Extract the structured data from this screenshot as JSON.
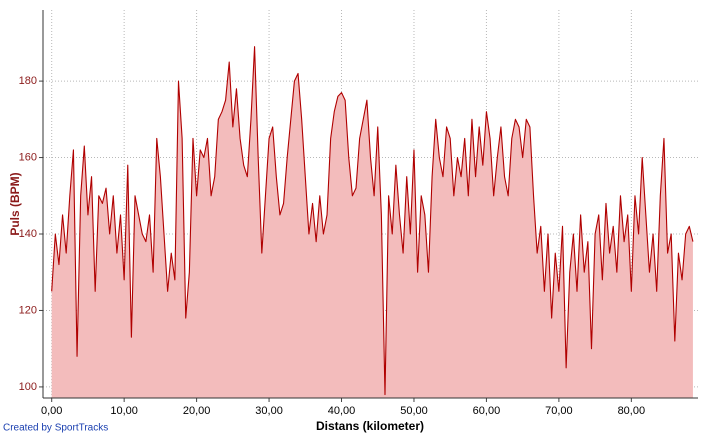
{
  "chart_data": {
    "type": "area",
    "x_label": "Distans (kilometer)",
    "y_label": "Puls (BPM)",
    "footer": "Created by SportTracks",
    "color": "#b00000",
    "fill_color": "#f3bcbc",
    "grid": true,
    "xlim": [
      -1.2,
      89.2
    ],
    "ylim": [
      97.1,
      198.6
    ],
    "xticks": [
      {
        "value": 0,
        "label": "0,00"
      },
      {
        "value": 10,
        "label": "10,00"
      },
      {
        "value": 20,
        "label": "20,00"
      },
      {
        "value": 30,
        "label": "30,00"
      },
      {
        "value": 40,
        "label": "40,00"
      },
      {
        "value": 50,
        "label": "50,00"
      },
      {
        "value": 60,
        "label": "60,00"
      },
      {
        "value": 70,
        "label": "70,00"
      },
      {
        "value": 80,
        "label": "80,00"
      }
    ],
    "yticks": [
      100,
      120,
      140,
      160,
      180
    ],
    "x": [
      0,
      0.5,
      1,
      1.5,
      2,
      2.5,
      3,
      3.5,
      4,
      4.5,
      5,
      5.5,
      6,
      6.5,
      7,
      7.5,
      8,
      8.5,
      9,
      9.5,
      10,
      10.5,
      11,
      11.5,
      12,
      12.5,
      13,
      13.5,
      14,
      14.5,
      15,
      15.5,
      16,
      16.5,
      17,
      17.5,
      18,
      18.5,
      19,
      19.5,
      20,
      20.5,
      21,
      21.5,
      22,
      22.5,
      23,
      23.5,
      24,
      24.5,
      25,
      25.5,
      26,
      26.5,
      27,
      27.5,
      28,
      28.5,
      29,
      29.5,
      30,
      30.5,
      31,
      31.5,
      32,
      32.5,
      33,
      33.5,
      34,
      34.5,
      35,
      35.5,
      36,
      36.5,
      37,
      37.5,
      38,
      38.5,
      39,
      39.5,
      40,
      40.5,
      41,
      41.5,
      42,
      42.5,
      43,
      43.5,
      44,
      44.5,
      45,
      45.5,
      46,
      46.5,
      47,
      47.5,
      48,
      48.5,
      49,
      49.5,
      50,
      50.5,
      51,
      51.5,
      52,
      52.5,
      53,
      53.5,
      54,
      54.5,
      55,
      55.5,
      56,
      56.5,
      57,
      57.5,
      58,
      58.5,
      59,
      59.5,
      60,
      60.5,
      61,
      61.5,
      62,
      62.5,
      63,
      63.5,
      64,
      64.5,
      65,
      65.5,
      66,
      66.5,
      67,
      67.5,
      68,
      68.5,
      69,
      69.5,
      70,
      70.5,
      71,
      71.5,
      72,
      72.5,
      73,
      73.5,
      74,
      74.5,
      75,
      75.5,
      76,
      76.5,
      77,
      77.5,
      78,
      78.5,
      79,
      79.5,
      80,
      80.5,
      81,
      81.5,
      82,
      82.5,
      83,
      83.5,
      84,
      84.5,
      85,
      85.5,
      86,
      86.5,
      87,
      87.5,
      88,
      88.5
    ],
    "values": [
      125,
      140,
      132,
      145,
      135,
      150,
      162,
      108,
      150,
      163,
      145,
      155,
      125,
      150,
      148,
      152,
      140,
      150,
      135,
      145,
      128,
      158,
      113,
      150,
      145,
      140,
      138,
      145,
      130,
      165,
      155,
      140,
      125,
      135,
      128,
      180,
      165,
      118,
      130,
      165,
      150,
      162,
      160,
      165,
      150,
      155,
      170,
      172,
      175,
      185,
      168,
      178,
      165,
      158,
      155,
      170,
      189,
      160,
      135,
      150,
      165,
      168,
      155,
      145,
      148,
      160,
      170,
      180,
      182,
      170,
      155,
      140,
      148,
      138,
      150,
      140,
      145,
      165,
      172,
      176,
      177,
      175,
      160,
      150,
      152,
      165,
      170,
      175,
      160,
      150,
      168,
      145,
      98,
      150,
      140,
      158,
      145,
      135,
      155,
      140,
      162,
      130,
      150,
      145,
      130,
      155,
      170,
      160,
      155,
      168,
      165,
      150,
      160,
      155,
      165,
      150,
      170,
      155,
      168,
      158,
      172,
      165,
      150,
      160,
      168,
      155,
      150,
      165,
      170,
      168,
      160,
      170,
      168,
      150,
      135,
      142,
      125,
      140,
      118,
      135,
      125,
      142,
      105,
      130,
      140,
      125,
      145,
      130,
      138,
      110,
      140,
      145,
      128,
      148,
      135,
      142,
      130,
      150,
      138,
      145,
      125,
      150,
      140,
      160,
      145,
      130,
      140,
      125,
      150,
      165,
      135,
      140,
      112,
      135,
      128,
      140,
      142,
      138
    ]
  }
}
